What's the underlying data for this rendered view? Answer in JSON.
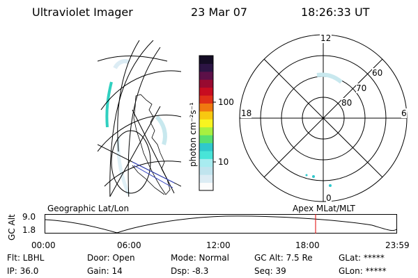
{
  "header": {
    "instrument": "Ultraviolet Imager",
    "date": "23 Mar 07",
    "time": "18:26:33 UT"
  },
  "colorbar": {
    "unit_label": "photon cm⁻²s⁻¹",
    "ticks": [
      "100",
      "10"
    ],
    "colors": [
      "#fcfcfc",
      "#dcecf4",
      "#c0e4ee",
      "#a8ecf0",
      "#48e4d8",
      "#30c8cc",
      "#58e070",
      "#a8f040",
      "#f8f420",
      "#f8c810",
      "#f07810",
      "#e03018",
      "#c80c20",
      "#980a30",
      "#5c1048",
      "#2c1444",
      "#140c24"
    ]
  },
  "left_map": {
    "label": "Geographic Lat/Lon"
  },
  "polar_plot": {
    "label": "Apex MLat/MLT",
    "hour_labels": [
      "12",
      "18",
      "6",
      "0"
    ],
    "lat_labels": [
      "60",
      "70",
      "80"
    ]
  },
  "timeline": {
    "axis_title": "GC Alt",
    "y_labels": [
      "9.0",
      "1.8"
    ],
    "x_labels": [
      "00:00",
      "06:00",
      "12:00",
      "18:00",
      "23:59"
    ],
    "marker_color": "#e00000"
  },
  "footer": {
    "flt": "Flt: LBHL",
    "ip": "IP: 36.0",
    "door": "Door: Open",
    "gain": "Gain: 14",
    "mode": "Mode: Normal",
    "dsp": "Dsp:    -8.3",
    "gcalt": "GC Alt: 7.5 Re",
    "seq": "Seq: 39",
    "glat": "GLat: *****",
    "glon": "GLon: *****"
  }
}
